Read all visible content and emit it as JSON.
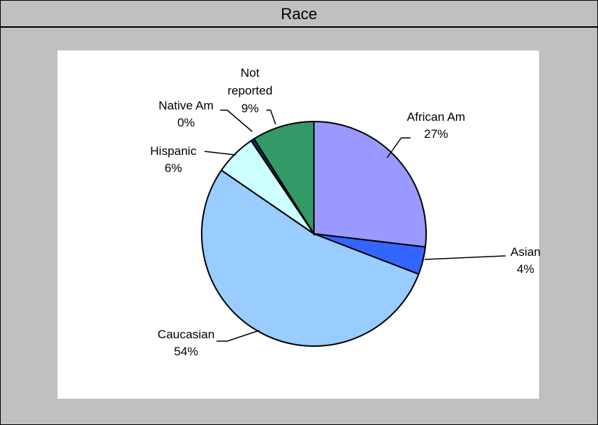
{
  "chart_data": {
    "type": "pie",
    "title": "Race",
    "slices": [
      {
        "label": "African Am",
        "value": 27,
        "pct_label": "27%",
        "color": "#9999ff"
      },
      {
        "label": "Asian",
        "value": 4,
        "pct_label": "4%",
        "color": "#3366ff"
      },
      {
        "label": "Caucasian",
        "value": 54,
        "pct_label": "54%",
        "color": "#99ccff"
      },
      {
        "label": "Hispanic",
        "value": 6,
        "pct_label": "6%",
        "color": "#ccffff"
      },
      {
        "label": "Native Am",
        "value": 0.5,
        "pct_label": "0%",
        "color": "#003366"
      },
      {
        "label": "Not reported",
        "value": 9,
        "pct_label": "9%",
        "color": "#339966"
      }
    ],
    "legend": "none",
    "start_angle": "12 o'clock",
    "direction": "clockwise"
  }
}
